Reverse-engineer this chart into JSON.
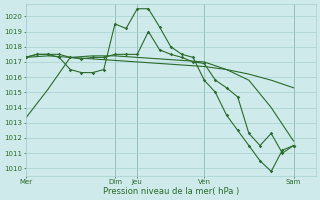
{
  "background_color": "#ceeaea",
  "grid_color": "#aacfcf",
  "line_color": "#2d6a2d",
  "xlabel": "Pression niveau de la mer( hPa )",
  "ylim": [
    1009.5,
    1020.8
  ],
  "yticks": [
    1010,
    1011,
    1012,
    1013,
    1014,
    1015,
    1016,
    1017,
    1018,
    1019,
    1020
  ],
  "xlim": [
    0,
    312
  ],
  "vlines": [
    96,
    120,
    192,
    288
  ],
  "series1_no_marker": {
    "x": [
      0,
      24,
      48,
      72,
      96,
      120,
      144,
      168,
      192,
      216,
      240,
      264,
      288
    ],
    "y": [
      1013.3,
      1015.2,
      1017.3,
      1017.4,
      1017.4,
      1017.3,
      1017.2,
      1017.1,
      1017.0,
      1016.5,
      1015.8,
      1014.0,
      1011.8
    ]
  },
  "series2_no_marker": {
    "x": [
      0,
      24,
      48,
      72,
      96,
      120,
      144,
      168,
      192,
      216,
      240,
      264,
      288
    ],
    "y": [
      1017.3,
      1017.4,
      1017.3,
      1017.2,
      1017.1,
      1017.0,
      1016.9,
      1016.8,
      1016.7,
      1016.5,
      1016.2,
      1015.8,
      1015.3
    ]
  },
  "series3_marker": {
    "x": [
      0,
      12,
      24,
      36,
      48,
      60,
      72,
      84,
      96,
      108,
      120,
      132,
      144,
      156,
      168,
      180,
      192,
      204,
      216,
      228,
      240,
      252,
      264,
      276,
      288
    ],
    "y": [
      1017.3,
      1017.5,
      1017.5,
      1017.3,
      1016.5,
      1016.3,
      1016.3,
      1016.5,
      1019.5,
      1019.2,
      1020.5,
      1020.5,
      1019.3,
      1018.0,
      1017.5,
      1017.3,
      1015.8,
      1015.0,
      1013.5,
      1012.5,
      1011.5,
      1010.5,
      1009.8,
      1011.2,
      1011.5
    ]
  },
  "series4_marker": {
    "x": [
      0,
      12,
      24,
      36,
      48,
      60,
      72,
      84,
      96,
      108,
      120,
      132,
      144,
      156,
      168,
      180,
      192,
      204,
      216,
      228,
      240,
      252,
      264,
      276,
      288
    ],
    "y": [
      1017.3,
      1017.5,
      1017.5,
      1017.5,
      1017.3,
      1017.2,
      1017.3,
      1017.3,
      1017.5,
      1017.5,
      1017.5,
      1019.0,
      1017.8,
      1017.5,
      1017.3,
      1017.0,
      1016.9,
      1015.8,
      1015.3,
      1014.7,
      1012.3,
      1011.5,
      1012.3,
      1011.0,
      1011.5
    ]
  },
  "xtick_positions": [
    0,
    96,
    120,
    192,
    288
  ],
  "xtick_labels": [
    "Mer",
    "Dim",
    "Jeu",
    "Ven",
    "Sam"
  ]
}
